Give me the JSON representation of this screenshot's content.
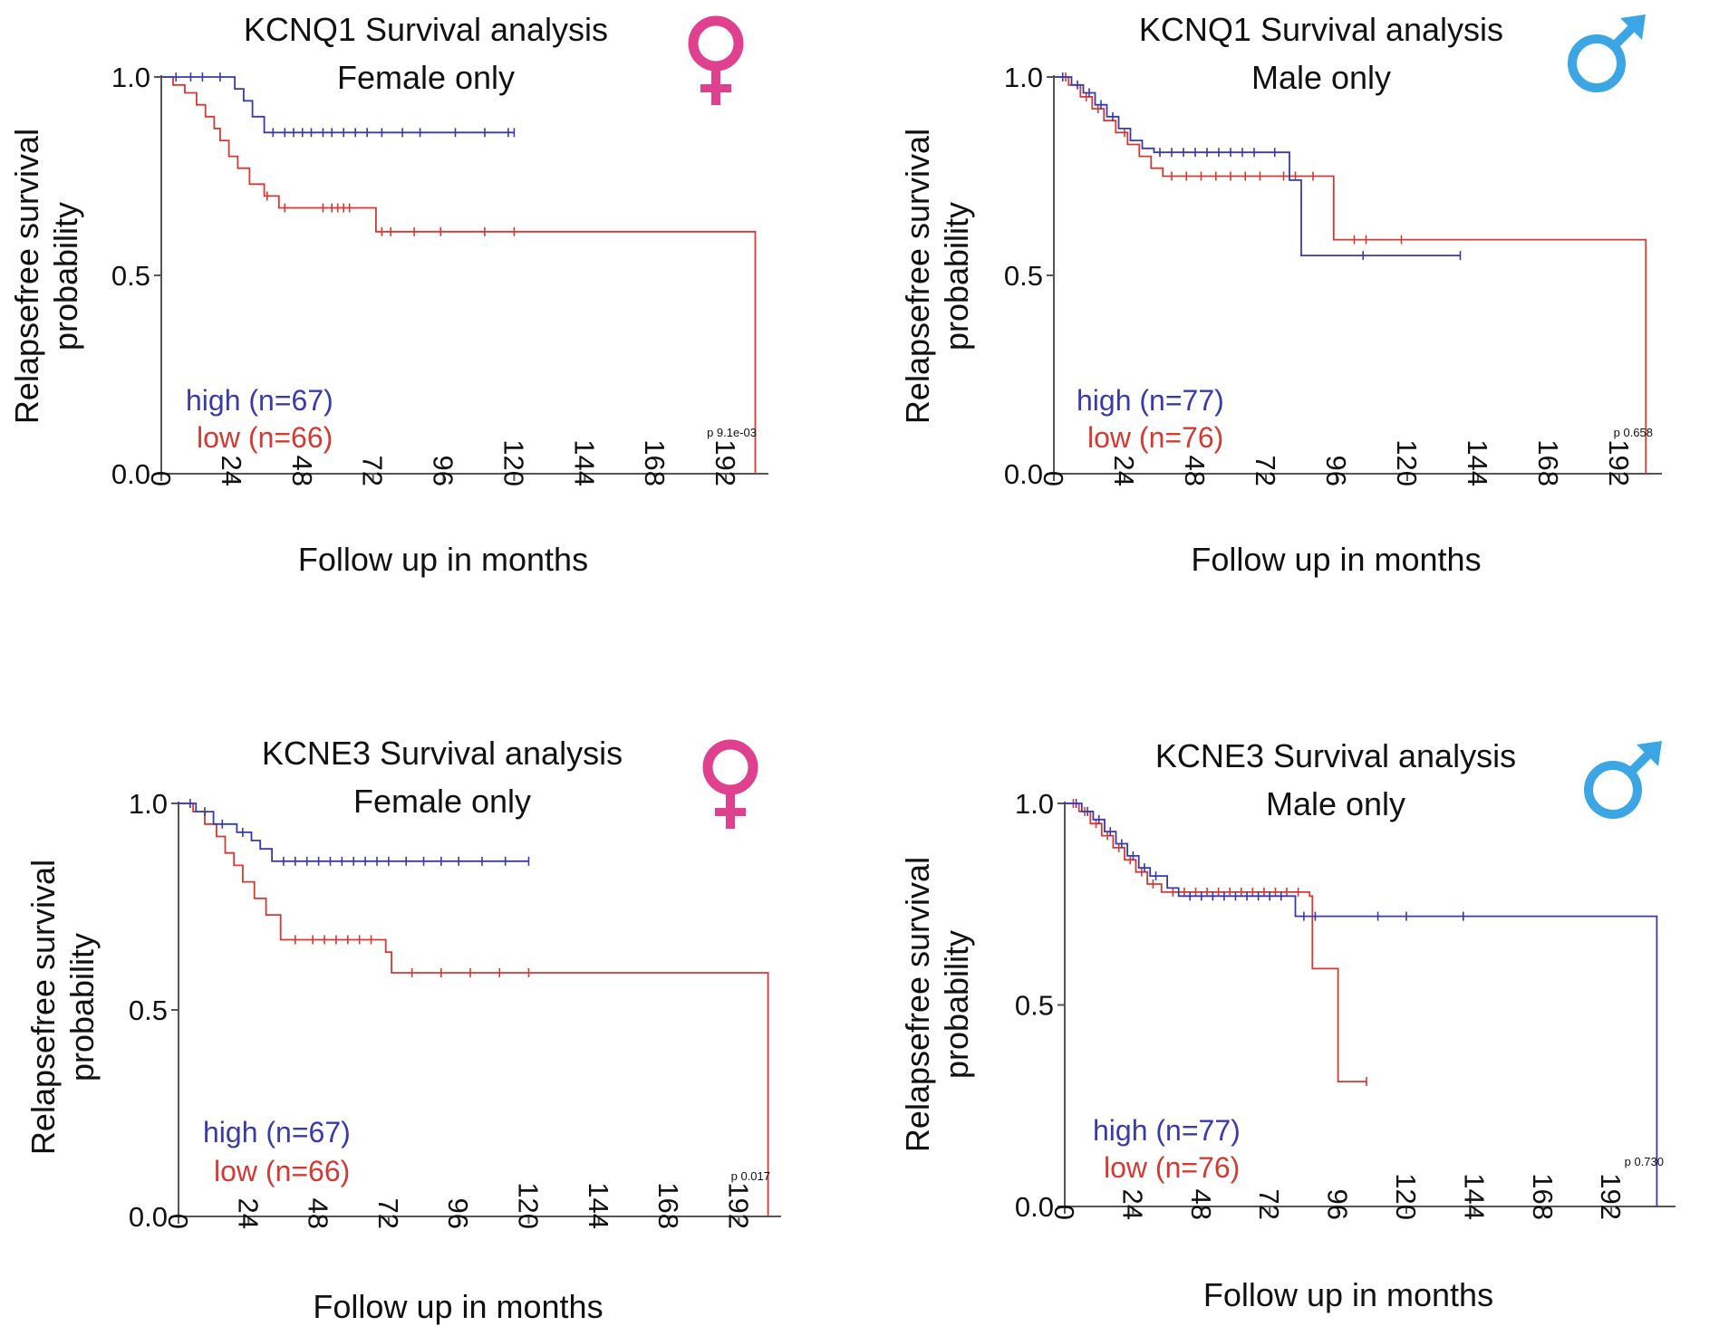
{
  "colors": {
    "high": "#3a3aa8",
    "low": "#d43a34",
    "female_symbol": "#e0418f",
    "male_symbol": "#3ba6e3",
    "axis": "#555555"
  },
  "chart_data": [
    {
      "type": "line",
      "title": "KCNQ1 Survival analysis",
      "subtitle": "Female only",
      "symbol": "♀",
      "ylabel": "Relapsefree survival",
      "ylabel2": "probability",
      "xlabel": "Follow up in months",
      "xticks": [
        "0",
        "24",
        "48",
        "72",
        "96",
        "120",
        "144",
        "168",
        "192"
      ],
      "yticks": [
        "0.0",
        "0.5",
        "1.0"
      ],
      "xlim": [
        0,
        204
      ],
      "ylim": [
        0,
        1
      ],
      "pvalue": "p 9.1e-03",
      "series": [
        {
          "name": "high",
          "legend": "high (n=67)",
          "color": "#3a3aa8",
          "steps": [
            [
              0,
              1.0
            ],
            [
              25,
              0.97
            ],
            [
              28,
              0.94
            ],
            [
              31,
              0.9
            ],
            [
              35,
              0.86
            ],
            [
              120,
              0.86
            ]
          ],
          "censors": [
            5,
            10,
            14,
            20,
            38,
            42,
            45,
            48,
            51,
            55,
            58,
            62,
            66,
            70,
            75,
            82,
            88,
            100,
            110,
            118,
            120
          ]
        },
        {
          "name": "low",
          "legend": "low (n=66)",
          "color": "#d43a34",
          "steps": [
            [
              0,
              1.0
            ],
            [
              4,
              0.98
            ],
            [
              8,
              0.96
            ],
            [
              12,
              0.93
            ],
            [
              15,
              0.9
            ],
            [
              18,
              0.87
            ],
            [
              20,
              0.84
            ],
            [
              23,
              0.8
            ],
            [
              26,
              0.77
            ],
            [
              30,
              0.73
            ],
            [
              35,
              0.7
            ],
            [
              40,
              0.67
            ],
            [
              73,
              0.61
            ],
            [
              202,
              0.61
            ],
            [
              202,
              0.0
            ]
          ],
          "censors": [
            36,
            42,
            55,
            58,
            60,
            62,
            64,
            75,
            78,
            86,
            95,
            110,
            120
          ]
        }
      ]
    },
    {
      "type": "line",
      "title": "KCNQ1 Survival analysis",
      "subtitle": "Male only",
      "symbol": "♂",
      "ylabel": "Relapsefree survival",
      "ylabel2": "probability",
      "xlabel": "Follow up in months",
      "xticks": [
        "0",
        "24",
        "48",
        "72",
        "96",
        "120",
        "144",
        "168",
        "192"
      ],
      "yticks": [
        "0.0",
        "0.5",
        "1.0"
      ],
      "xlim": [
        0,
        204
      ],
      "ylim": [
        0,
        1
      ],
      "pvalue": "p 0.658",
      "series": [
        {
          "name": "high",
          "legend": "high (n=77)",
          "color": "#3a3aa8",
          "steps": [
            [
              0,
              1.0
            ],
            [
              6,
              0.98
            ],
            [
              10,
              0.96
            ],
            [
              14,
              0.93
            ],
            [
              18,
              0.9
            ],
            [
              22,
              0.87
            ],
            [
              26,
              0.84
            ],
            [
              30,
              0.82
            ],
            [
              34,
              0.81
            ],
            [
              80,
              0.74
            ],
            [
              84,
              0.55
            ],
            [
              138,
              0.55
            ]
          ],
          "censors": [
            3,
            8,
            12,
            16,
            20,
            36,
            40,
            44,
            48,
            52,
            56,
            60,
            64,
            68,
            75,
            105,
            138
          ]
        },
        {
          "name": "low",
          "legend": "low (n=76)",
          "color": "#d43a34",
          "steps": [
            [
              0,
              1.0
            ],
            [
              5,
              0.98
            ],
            [
              9,
              0.95
            ],
            [
              13,
              0.92
            ],
            [
              17,
              0.89
            ],
            [
              21,
              0.86
            ],
            [
              25,
              0.83
            ],
            [
              29,
              0.8
            ],
            [
              33,
              0.77
            ],
            [
              37,
              0.75
            ],
            [
              91,
              0.75
            ],
            [
              95,
              0.59
            ],
            [
              201,
              0.59
            ],
            [
              201,
              0.0
            ]
          ],
          "censors": [
            4,
            11,
            15,
            24,
            40,
            45,
            50,
            55,
            60,
            65,
            70,
            78,
            82,
            88,
            102,
            106,
            118
          ]
        }
      ]
    },
    {
      "type": "line",
      "title": "KCNE3 Survival analysis",
      "subtitle": "Female only",
      "symbol": "♀",
      "ylabel": "Relapsefree survival",
      "ylabel2": "probability",
      "xlabel": "Follow up in months",
      "xticks": [
        "0",
        "24",
        "48",
        "72",
        "96",
        "120",
        "144",
        "168",
        "192"
      ],
      "yticks": [
        "0.0",
        "0.5",
        "1.0"
      ],
      "xlim": [
        0,
        204
      ],
      "ylim": [
        0,
        1
      ],
      "pvalue": "p 0.017",
      "series": [
        {
          "name": "high",
          "legend": "high (n=67)",
          "color": "#3a3aa8",
          "steps": [
            [
              0,
              1.0
            ],
            [
              6,
              0.98
            ],
            [
              12,
              0.95
            ],
            [
              20,
              0.93
            ],
            [
              25,
              0.91
            ],
            [
              28,
              0.89
            ],
            [
              32,
              0.86
            ],
            [
              120,
              0.86
            ]
          ],
          "censors": [
            4,
            9,
            15,
            22,
            36,
            40,
            44,
            48,
            52,
            56,
            60,
            64,
            68,
            72,
            78,
            84,
            90,
            96,
            104,
            112,
            120
          ]
        },
        {
          "name": "low",
          "legend": "low (n=66)",
          "color": "#d43a34",
          "steps": [
            [
              0,
              1.0
            ],
            [
              5,
              0.98
            ],
            [
              9,
              0.95
            ],
            [
              13,
              0.92
            ],
            [
              16,
              0.88
            ],
            [
              19,
              0.85
            ],
            [
              22,
              0.81
            ],
            [
              26,
              0.77
            ],
            [
              30,
              0.73
            ],
            [
              35,
              0.67
            ],
            [
              71,
              0.64
            ],
            [
              73,
              0.59
            ],
            [
              202,
              0.59
            ],
            [
              202,
              0.0
            ]
          ],
          "censors": [
            40,
            46,
            50,
            54,
            58,
            62,
            66,
            80,
            90,
            100,
            110,
            120
          ]
        }
      ]
    },
    {
      "type": "line",
      "title": "KCNE3 Survival analysis",
      "subtitle": "Male only",
      "symbol": "♂",
      "ylabel": "Relapsefree survival",
      "ylabel2": "probability",
      "xlabel": "Follow up in months",
      "xticks": [
        "0",
        "24",
        "48",
        "72",
        "96",
        "120",
        "144",
        "168",
        "192"
      ],
      "yticks": [
        "0.0",
        "0.5",
        "1.0"
      ],
      "xlim": [
        0,
        212
      ],
      "ylim": [
        0,
        1
      ],
      "pvalue": "p 0.730",
      "series": [
        {
          "name": "high",
          "legend": "high (n=77)",
          "color": "#3a3aa8",
          "steps": [
            [
              0,
              1.0
            ],
            [
              6,
              0.98
            ],
            [
              10,
              0.96
            ],
            [
              14,
              0.93
            ],
            [
              18,
              0.9
            ],
            [
              22,
              0.87
            ],
            [
              26,
              0.84
            ],
            [
              30,
              0.82
            ],
            [
              36,
              0.79
            ],
            [
              40,
              0.77
            ],
            [
              81,
              0.72
            ],
            [
              208,
              0.72
            ],
            [
              208,
              0.0
            ]
          ],
          "censors": [
            4,
            8,
            12,
            16,
            20,
            24,
            28,
            32,
            44,
            48,
            52,
            56,
            60,
            64,
            68,
            72,
            76,
            84,
            88,
            110,
            120,
            140
          ]
        },
        {
          "name": "low",
          "legend": "low (n=76)",
          "color": "#d43a34",
          "steps": [
            [
              0,
              1.0
            ],
            [
              5,
              0.98
            ],
            [
              9,
              0.95
            ],
            [
              13,
              0.92
            ],
            [
              17,
              0.89
            ],
            [
              21,
              0.86
            ],
            [
              25,
              0.83
            ],
            [
              29,
              0.8
            ],
            [
              34,
              0.78
            ],
            [
              86,
              0.77
            ],
            [
              87,
              0.59
            ],
            [
              95,
              0.59
            ],
            [
              96,
              0.31
            ],
            [
              106,
              0.31
            ]
          ],
          "censors": [
            3,
            7,
            11,
            15,
            19,
            23,
            27,
            31,
            38,
            42,
            46,
            50,
            54,
            58,
            62,
            66,
            70,
            74,
            78,
            82,
            106
          ]
        }
      ]
    }
  ]
}
